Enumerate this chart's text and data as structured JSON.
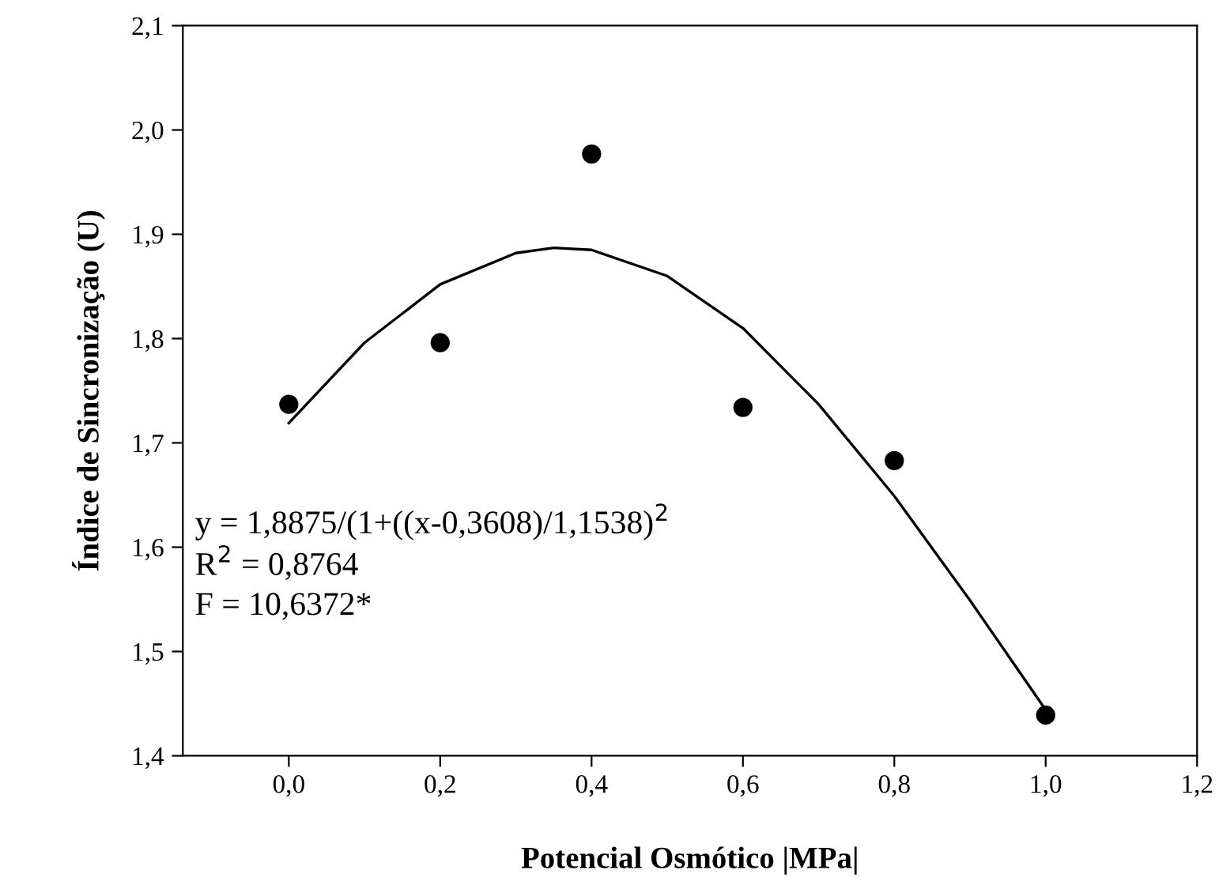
{
  "chart_data": {
    "type": "scatter",
    "xlabel": "Potencial Osmótico |MPa|",
    "ylabel": "Índice de Sincronização (U)",
    "x": [
      0,
      0.2,
      0.4,
      0.6,
      0.8,
      1.0
    ],
    "series": [
      {
        "color": "#000000",
        "marker": "circle",
        "values": [
          1.737,
          1.796,
          1.977,
          1.734,
          1.683,
          1.439
        ]
      },
      {
        "type": "line",
        "color": "#000000",
        "marker": "none",
        "line_style": "solid",
        "x": [
          0,
          0.1,
          0.2,
          0.3,
          0.35,
          0.4,
          0.5,
          0.6,
          0.7,
          0.8,
          0.9,
          1.0
        ],
        "values": [
          1.719,
          1.796,
          1.852,
          1.882,
          1.887,
          1.885,
          1.86,
          1.81,
          1.737,
          1.649,
          1.549,
          1.444
        ]
      }
    ],
    "xlim": [
      -0.14,
      1.2
    ],
    "ylim": [
      1.4,
      2.1
    ],
    "xticks": [
      {
        "value": 0,
        "label": "0,0"
      },
      {
        "value": 0.2,
        "label": "0,2"
      },
      {
        "value": 0.4,
        "label": "0,4"
      },
      {
        "value": 0.6,
        "label": "0,6"
      },
      {
        "value": 0.8,
        "label": "0,8"
      },
      {
        "value": 1.0,
        "label": "1,0"
      },
      {
        "value": 1.2,
        "label": "1,2"
      }
    ],
    "yticks": [
      {
        "value": 1.4,
        "label": "1,4"
      },
      {
        "value": 1.5,
        "label": "1,5"
      },
      {
        "value": 1.6,
        "label": "1,6"
      },
      {
        "value": 1.7,
        "label": "1,7"
      },
      {
        "value": 1.8,
        "label": "1,8"
      },
      {
        "value": 1.9,
        "label": "1,9"
      },
      {
        "value": 2.0,
        "label": "2,0"
      },
      {
        "value": 2.1,
        "label": "2,1"
      }
    ],
    "grid": false,
    "legend": false,
    "annotations": [
      "y = 1,8875/(1+((x-0,3608)/1,1538)$^{2}$",
      "R$^{2}$ = 0,8764",
      "F = 10,6372*"
    ]
  }
}
